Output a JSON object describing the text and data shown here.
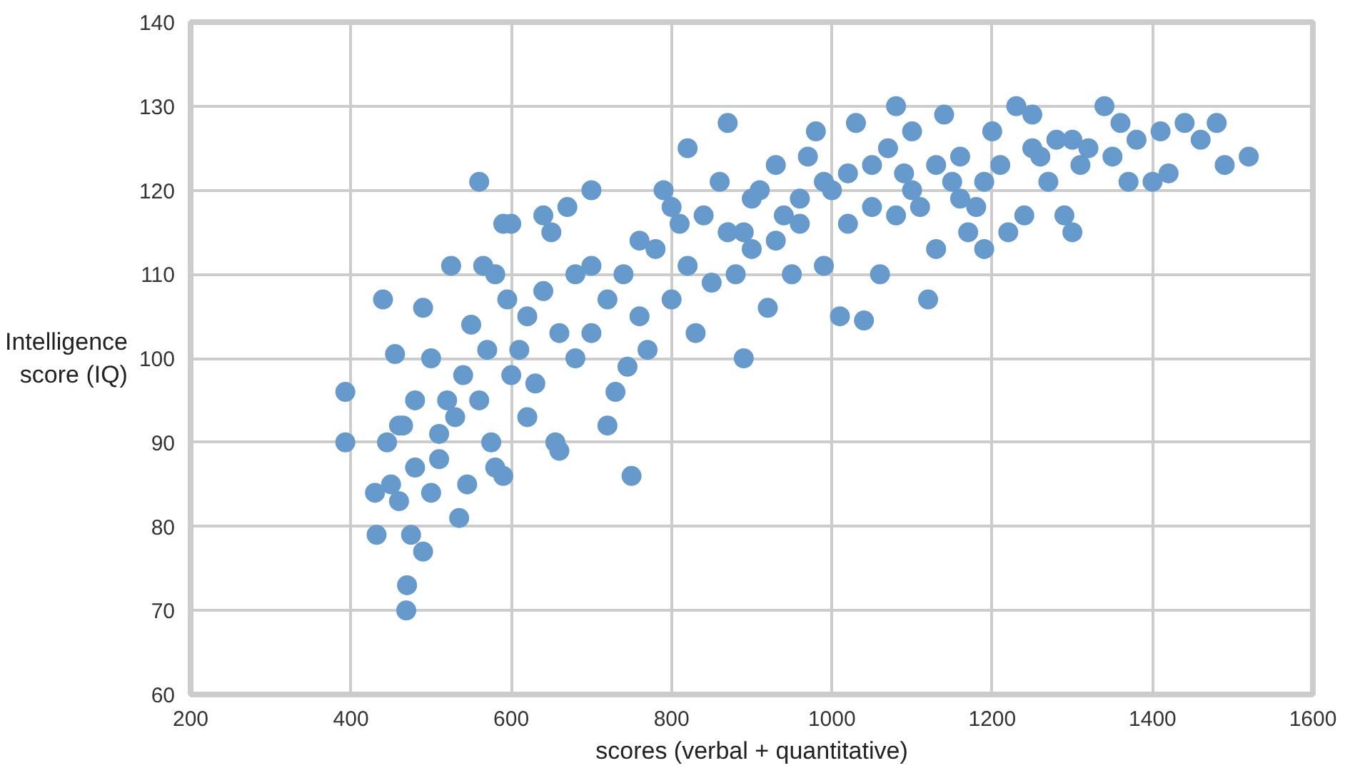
{
  "chart_data": {
    "type": "scatter",
    "xlabel": "scores (verbal + quantitative)",
    "ylabel": "Intelligence score (IQ)",
    "xlim": [
      200,
      1600
    ],
    "xticks": [
      200,
      400,
      600,
      800,
      1000,
      1200,
      1400,
      1600
    ],
    "ylim": [
      60,
      140
    ],
    "yticks": [
      60,
      70,
      80,
      90,
      100,
      110,
      120,
      130,
      140
    ],
    "grid": true,
    "marker": "circle",
    "series": [
      {
        "color": "#6699cc",
        "x": [
          393,
          393,
          440,
          455,
          430,
          432,
          470,
          469,
          490,
          475,
          460,
          450,
          445,
          465,
          480,
          500,
          510,
          520,
          500,
          490,
          525,
          535,
          545,
          560,
          565,
          580,
          590,
          600,
          595,
          570,
          560,
          575,
          580,
          590,
          610,
          620,
          640,
          650,
          655,
          660,
          670,
          680,
          700,
          700,
          720,
          730,
          750,
          745,
          760,
          770,
          790,
          800,
          810,
          820,
          830,
          840,
          860,
          870,
          880,
          890,
          890,
          900,
          910,
          920,
          930,
          940,
          950,
          960,
          970,
          980,
          990,
          1000,
          1010,
          1020,
          1030,
          1040,
          1050,
          1060,
          1070,
          1080,
          1090,
          1100,
          1110,
          1120,
          1130,
          1140,
          1150,
          1160,
          1170,
          1180,
          1190,
          1200,
          1210,
          1220,
          1230,
          1240,
          1250,
          1260,
          1270,
          1280,
          1290,
          1300,
          1310,
          1320,
          1340,
          1350,
          1360,
          1370,
          1380,
          1400,
          1410,
          1420,
          1440,
          1460,
          1480,
          1490,
          1520,
          620,
          640,
          660,
          680,
          700,
          720,
          740,
          760,
          780,
          800,
          820,
          850,
          870,
          900,
          930,
          960,
          990,
          1020,
          1050,
          1080,
          1100,
          1130,
          1160,
          1190,
          1250,
          1300,
          540,
          530,
          510,
          480,
          460,
          550,
          600,
          630
        ],
        "values": [
          96,
          90,
          107,
          100.5,
          84,
          79,
          73,
          70,
          77,
          79,
          83,
          85,
          90,
          92,
          87,
          84,
          88,
          95,
          100,
          106,
          111,
          81,
          85,
          121,
          111,
          110,
          116,
          116,
          107,
          101,
          95,
          90,
          87,
          86,
          101,
          93,
          117,
          115,
          90,
          89,
          118,
          110,
          120,
          103,
          92,
          96,
          86,
          99,
          114,
          101,
          120,
          107,
          116,
          125,
          103,
          117,
          121,
          128,
          110,
          100,
          115,
          113,
          120,
          106,
          123,
          117,
          110,
          119,
          124,
          127,
          111,
          120,
          105,
          122,
          128,
          104.5,
          118,
          110,
          125,
          130,
          122,
          127,
          118,
          107,
          113,
          129,
          121,
          124,
          115,
          118,
          113,
          127,
          123,
          115,
          130,
          117,
          129,
          124,
          121,
          126,
          117,
          115,
          123,
          125,
          130,
          124,
          128,
          121,
          126,
          121,
          127,
          122,
          128,
          126,
          128,
          123,
          124,
          105,
          108,
          103,
          100,
          111,
          107,
          110,
          105,
          113,
          118,
          111,
          109,
          115,
          119,
          114,
          116,
          121,
          116,
          123,
          117,
          120,
          123,
          119,
          121,
          125,
          126,
          98,
          93,
          91,
          95,
          92,
          104,
          98,
          97
        ]
      }
    ]
  }
}
